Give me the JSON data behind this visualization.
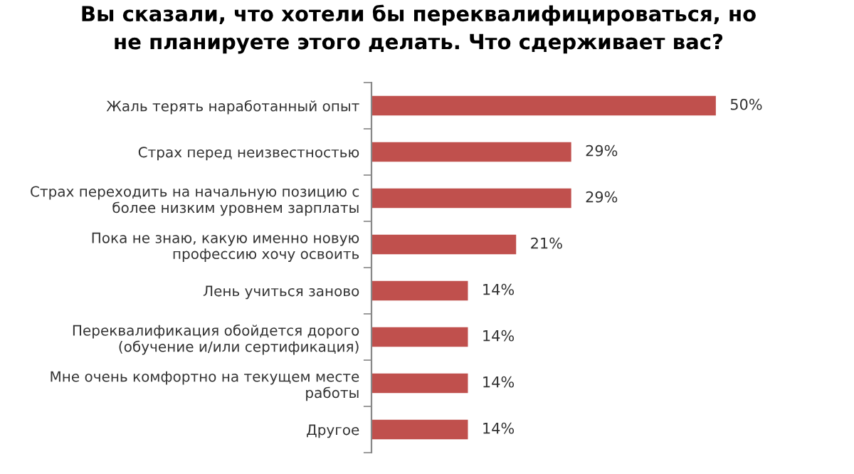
{
  "chart_data": {
    "type": "bar",
    "orientation": "horizontal",
    "title": "Вы сказали, что хотели бы переквалифицироваться, но\nне планируете этого делать. Что сдерживает вас?",
    "categories": [
      "Жаль терять наработанный опыт",
      "Страх перед неизвестностью",
      "Страх переходить на начальную позицию с\nболее низким уровнем зарплаты",
      "Пока не знаю, какую именно новую\nпрофессию хочу освоить",
      "Лень учиться заново",
      "Переквалификация обойдется дорого\n(обучение и/или сертификация)",
      "Мне очень комфортно на текущем месте\nработы",
      "Другое"
    ],
    "values": [
      50,
      29,
      29,
      21,
      14,
      14,
      14,
      14
    ],
    "value_labels": [
      "50%",
      "29%",
      "29%",
      "21%",
      "14%",
      "14%",
      "14%",
      "14%"
    ],
    "color": "#c0504d",
    "grid": false,
    "legend": false
  }
}
